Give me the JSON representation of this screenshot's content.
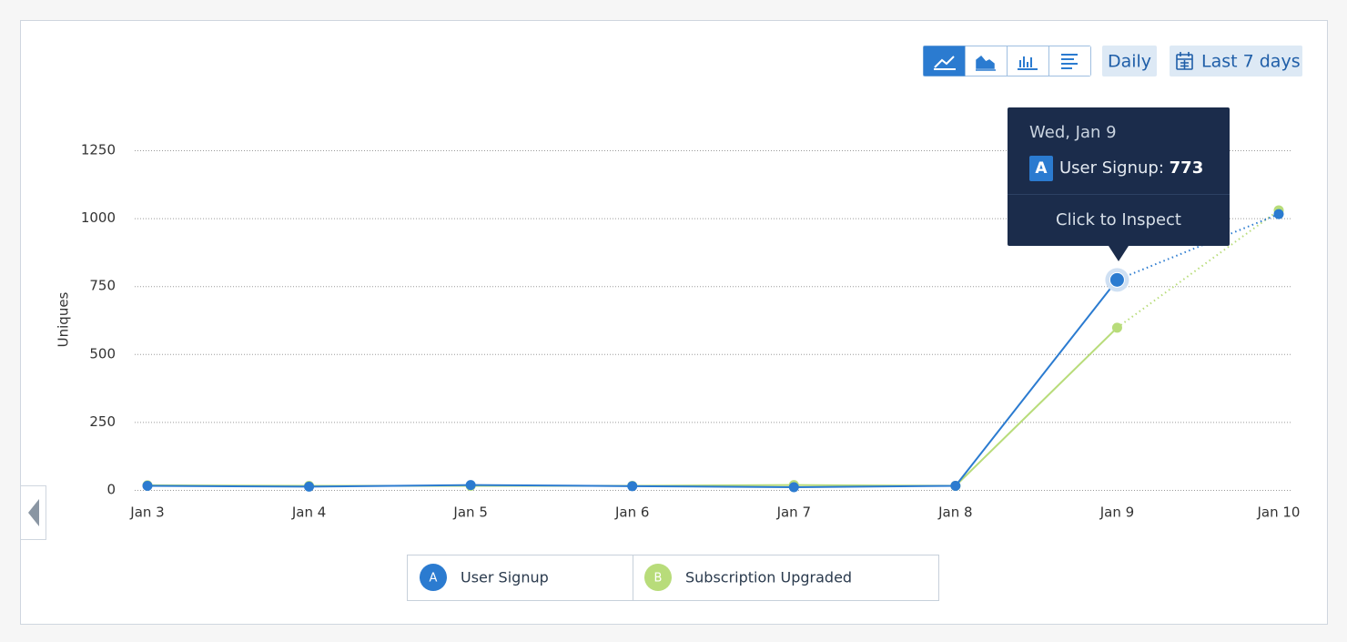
{
  "chart_data": {
    "type": "line",
    "y_label": "Uniques",
    "categories": [
      "Jan 3",
      "Jan 4",
      "Jan 5",
      "Jan 6",
      "Jan 7",
      "Jan 8",
      "Jan 9",
      "Jan 10"
    ],
    "series": [
      {
        "name": "User Signup",
        "badge": "A",
        "color": "#2b7bd0",
        "values": [
          15,
          12,
          18,
          14,
          10,
          15,
          773,
          1015
        ]
      },
      {
        "name": "Subscription Upgraded",
        "badge": "B",
        "color": "#b8dc7a",
        "values": [
          17,
          15,
          15,
          15,
          18,
          15,
          597,
          1029
        ]
      }
    ],
    "ylim": [
      0,
      1250
    ],
    "yticks": [
      0,
      250,
      500,
      750,
      1000,
      1250
    ],
    "grid": true
  },
  "toolbar": {
    "interval": "Daily",
    "range": "Last 7 days"
  },
  "tooltip": {
    "date": "Wed, Jan 9",
    "badge": "A",
    "label": "User Signup:",
    "action": "Click to Inspect"
  }
}
